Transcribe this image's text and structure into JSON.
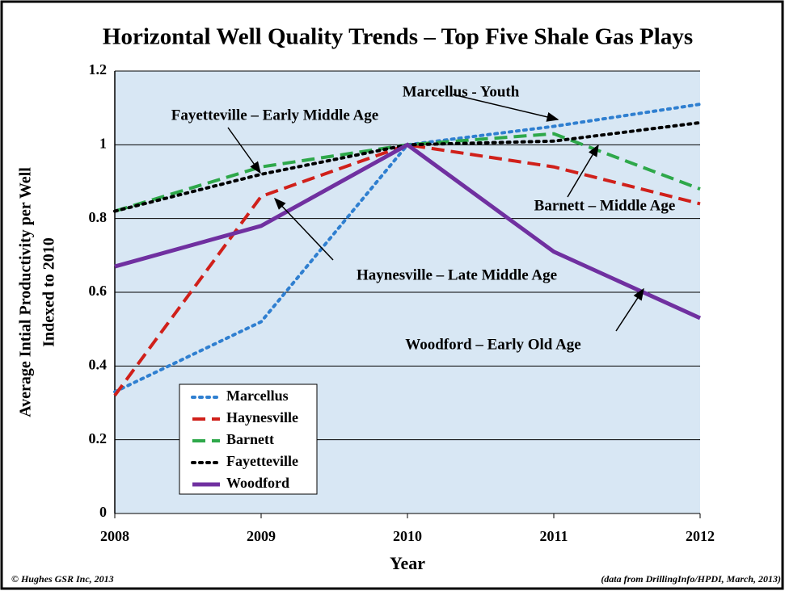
{
  "chart_data": {
    "type": "line",
    "title": "Horizontal Well Quality Trends – Top Five Shale Gas Plays",
    "x_label": "Year",
    "y_label": [
      "Average Intial Productivity  per Well",
      "Indexed to 2010"
    ],
    "x": [
      2008,
      2009,
      2010,
      2011,
      2012
    ],
    "xlim": [
      2008,
      2012
    ],
    "xticks": [
      2008,
      2009,
      2010,
      2011,
      2012
    ],
    "ylim": [
      0,
      1.2
    ],
    "yticks": [
      0,
      0.2,
      0.4,
      0.6,
      0.8,
      1,
      1.2
    ],
    "grid": true,
    "legend": "lower left",
    "series": [
      {
        "name": "Marcellus",
        "color": "#2f7fd0",
        "style": "dotted",
        "values": [
          0.33,
          0.52,
          1.0,
          1.05,
          1.11
        ]
      },
      {
        "name": "Haynesville",
        "color": "#d0201a",
        "style": "dashed",
        "values": [
          0.32,
          0.86,
          1.0,
          0.94,
          0.84
        ]
      },
      {
        "name": "Barnett",
        "color": "#2ea84a",
        "style": "dashed",
        "values": [
          0.82,
          0.94,
          1.0,
          1.03,
          0.88
        ]
      },
      {
        "name": "Fayetteville",
        "color": "#000000",
        "style": "dotted",
        "values": [
          0.82,
          0.92,
          1.0,
          1.01,
          1.06
        ]
      },
      {
        "name": "Woodford",
        "color": "#7030a0",
        "style": "solid",
        "values": [
          0.67,
          0.78,
          1.0,
          0.71,
          0.53
        ]
      }
    ],
    "annotations": [
      "Marcellus - Youth",
      "Fayetteville – Early Middle Age",
      "Barnett – Middle Age",
      "Haynesville – Late Middle Age",
      "Woodford – Early Old Age"
    ],
    "footer": [
      "© Hughes GSR Inc, 2013",
      "(data from DrillingInfo/HPDI, March, 2013)"
    ]
  }
}
